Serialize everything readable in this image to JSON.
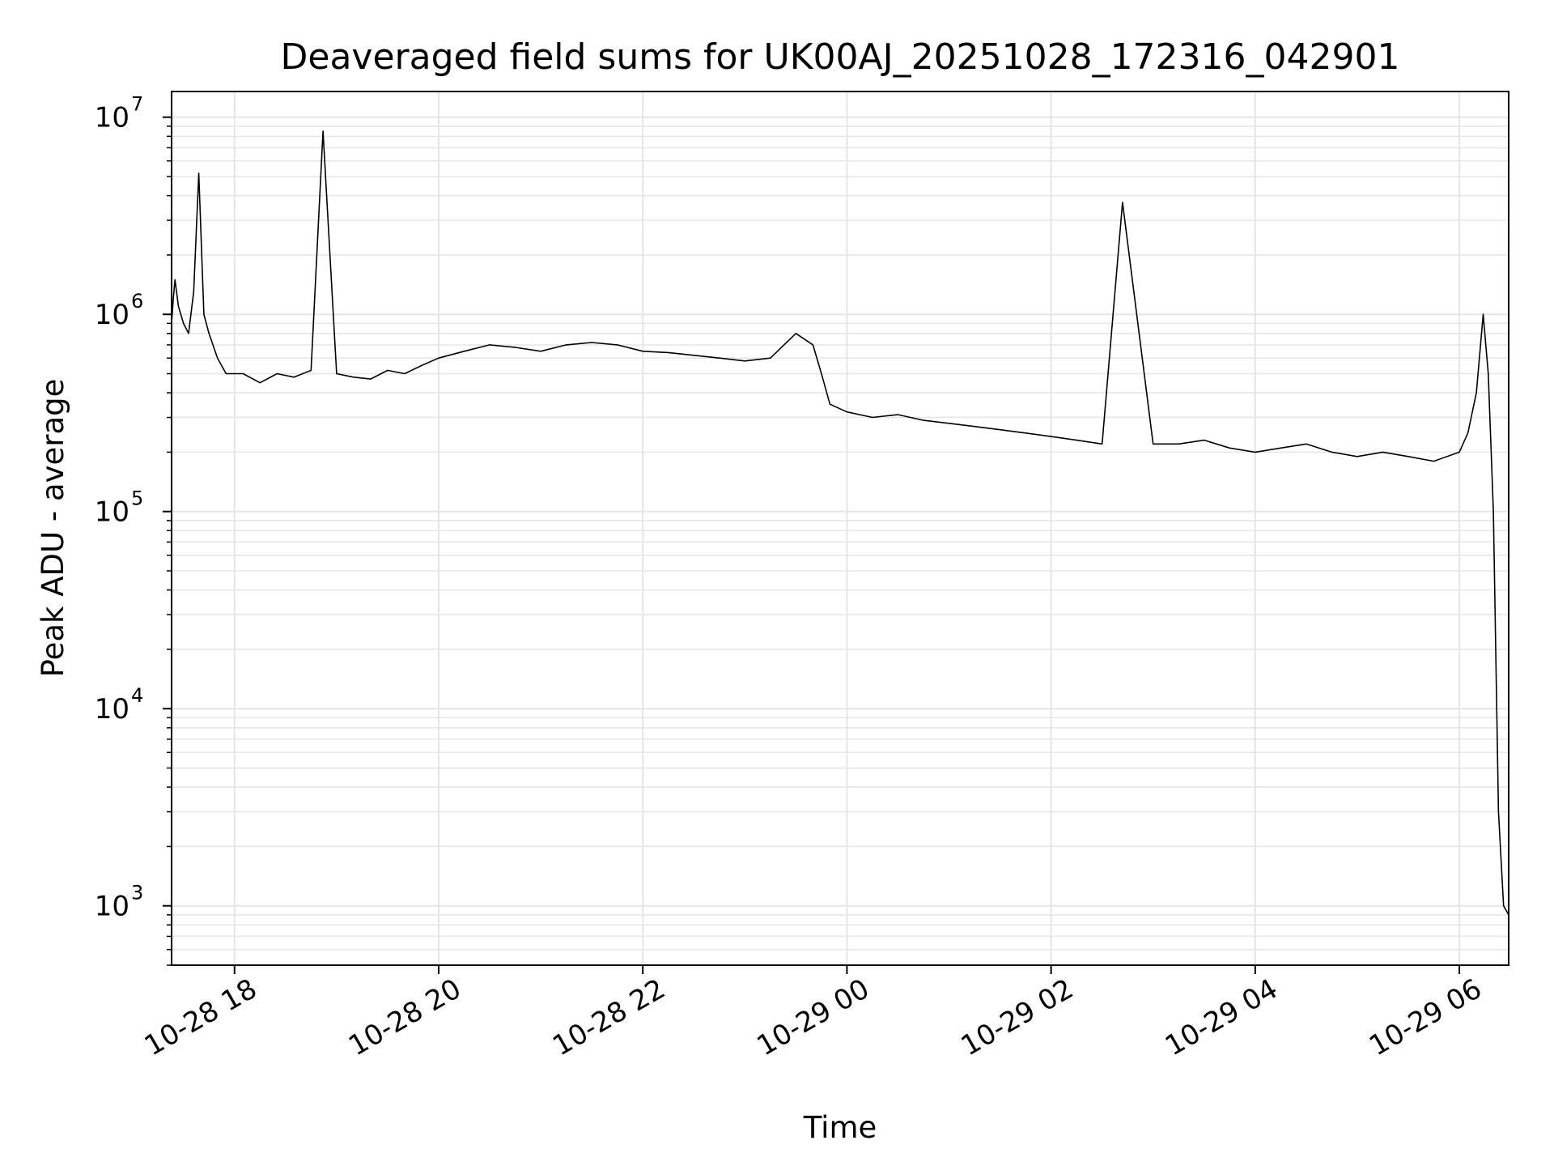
{
  "chart_data": {
    "type": "line",
    "title": "Deaveraged field sums for UK00AJ_20251028_172316_042901",
    "xlabel": "Time",
    "ylabel": "Peak ADU - average",
    "y_scale": "log",
    "ylim": [
      500,
      13500000
    ],
    "xlim": [
      "2025-10-28 17:23",
      "2025-10-29 06:29"
    ],
    "grid": true,
    "line_color": "#000000",
    "grid_color": "#e5e5e5",
    "x_ticks": [
      {
        "value": "2025-10-28 18:00",
        "label": "10-28 18"
      },
      {
        "value": "2025-10-28 20:00",
        "label": "10-28 20"
      },
      {
        "value": "2025-10-28 22:00",
        "label": "10-28 22"
      },
      {
        "value": "2025-10-29 00:00",
        "label": "10-29 00"
      },
      {
        "value": "2025-10-29 02:00",
        "label": "10-29 02"
      },
      {
        "value": "2025-10-29 04:00",
        "label": "10-29 04"
      },
      {
        "value": "2025-10-29 06:00",
        "label": "10-29 06"
      }
    ],
    "y_ticks": [
      {
        "value": 1000,
        "base": "10",
        "exp": "3"
      },
      {
        "value": 10000,
        "base": "10",
        "exp": "4"
      },
      {
        "value": 100000,
        "base": "10",
        "exp": "5"
      },
      {
        "value": 1000000,
        "base": "10",
        "exp": "6"
      },
      {
        "value": 10000000,
        "base": "10",
        "exp": "7"
      }
    ],
    "series": [
      {
        "x": [
          "2025-10-28 17:23",
          "2025-10-28 17:24",
          "2025-10-28 17:25",
          "2025-10-28 17:27",
          "2025-10-28 17:30",
          "2025-10-28 17:33",
          "2025-10-28 17:36",
          "2025-10-28 17:39",
          "2025-10-28 17:42",
          "2025-10-28 17:45",
          "2025-10-28 17:50",
          "2025-10-28 17:55",
          "2025-10-28 18:05",
          "2025-10-28 18:15",
          "2025-10-28 18:25",
          "2025-10-28 18:35",
          "2025-10-28 18:45",
          "2025-10-28 18:52",
          "2025-10-28 19:00",
          "2025-10-28 19:10",
          "2025-10-28 19:20",
          "2025-10-28 19:30",
          "2025-10-28 19:40",
          "2025-10-28 19:50",
          "2025-10-28 20:00",
          "2025-10-28 20:15",
          "2025-10-28 20:30",
          "2025-10-28 20:45",
          "2025-10-28 21:00",
          "2025-10-28 21:15",
          "2025-10-28 21:30",
          "2025-10-28 21:45",
          "2025-10-28 22:00",
          "2025-10-28 22:15",
          "2025-10-28 22:30",
          "2025-10-28 22:45",
          "2025-10-28 23:00",
          "2025-10-28 23:15",
          "2025-10-28 23:30",
          "2025-10-28 23:40",
          "2025-10-28 23:45",
          "2025-10-28 23:50",
          "2025-10-29 00:00",
          "2025-10-29 00:15",
          "2025-10-29 00:30",
          "2025-10-29 00:45",
          "2025-10-29 01:00",
          "2025-10-29 01:15",
          "2025-10-29 01:30",
          "2025-10-29 01:45",
          "2025-10-29 02:00",
          "2025-10-29 02:15",
          "2025-10-29 02:30",
          "2025-10-29 02:42",
          "2025-10-29 03:00",
          "2025-10-29 03:15",
          "2025-10-29 03:30",
          "2025-10-29 03:45",
          "2025-10-29 04:00",
          "2025-10-29 04:15",
          "2025-10-29 04:30",
          "2025-10-29 04:45",
          "2025-10-29 05:00",
          "2025-10-29 05:15",
          "2025-10-29 05:30",
          "2025-10-29 05:45",
          "2025-10-29 06:00",
          "2025-10-29 06:05",
          "2025-10-29 06:10",
          "2025-10-29 06:14",
          "2025-10-29 06:17",
          "2025-10-29 06:20",
          "2025-10-29 06:23",
          "2025-10-29 06:26",
          "2025-10-29 06:29"
        ],
        "y": [
          900000,
          1200000,
          1500000,
          1100000,
          900000,
          800000,
          1300000,
          5200000,
          1000000,
          800000,
          600000,
          500000,
          500000,
          450000,
          500000,
          480000,
          520000,
          8500000,
          500000,
          480000,
          470000,
          520000,
          500000,
          550000,
          600000,
          650000,
          700000,
          680000,
          650000,
          700000,
          720000,
          700000,
          650000,
          640000,
          620000,
          600000,
          580000,
          600000,
          800000,
          700000,
          500000,
          350000,
          320000,
          300000,
          310000,
          290000,
          280000,
          270000,
          260000,
          250000,
          240000,
          230000,
          220000,
          3700000,
          220000,
          220000,
          230000,
          210000,
          200000,
          210000,
          220000,
          200000,
          190000,
          200000,
          190000,
          180000,
          200000,
          250000,
          400000,
          1000000,
          500000,
          100000,
          3000,
          1000,
          900
        ]
      }
    ]
  }
}
